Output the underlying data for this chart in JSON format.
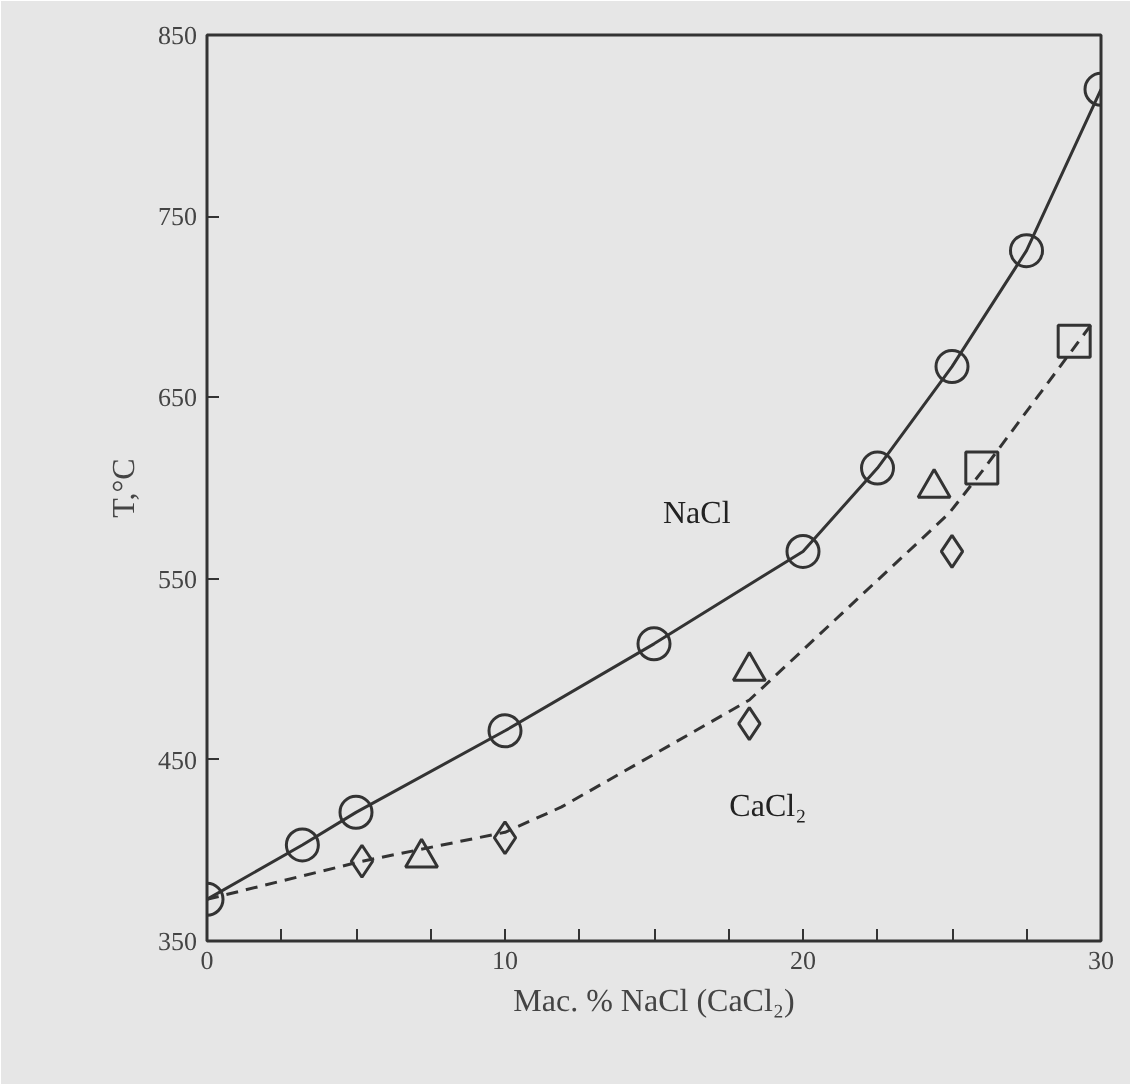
{
  "chart_data": {
    "type": "scatter",
    "xlabel": "Мас. % NaCl (CaCl₂)",
    "ylabel": "T,°C",
    "xlim": [
      0,
      30
    ],
    "ylim": [
      350,
      850
    ],
    "xticks": [
      0,
      {
        "value": 2.5,
        "label": null
      },
      {
        "value": 5,
        "label": null
      },
      {
        "value": 7.5,
        "label": null
      },
      10,
      {
        "value": 12.5,
        "label": null
      },
      {
        "value": 15,
        "label": null
      },
      {
        "value": 17.5,
        "label": null
      },
      20,
      {
        "value": 22.5,
        "label": null
      },
      {
        "value": 25,
        "label": null
      },
      {
        "value": 27.5,
        "label": null
      },
      30
    ],
    "yticks": [
      350,
      450,
      550,
      650,
      750,
      850
    ],
    "grid": false,
    "legend": false,
    "series": [
      {
        "type": "line",
        "name": "NaCl",
        "color": "#333333",
        "line_style": "solid",
        "x": [
          0,
          3.2,
          5,
          10,
          15,
          20,
          22.5,
          25,
          27.5,
          30
        ],
        "values": [
          373,
          403,
          421,
          466,
          514,
          565,
          611,
          667,
          731,
          820
        ]
      },
      {
        "type": "line",
        "name": "CaCl₂",
        "color": "#333333",
        "line_style": "dashed",
        "x": [
          0,
          5.2,
          10,
          11.9,
          18.2,
          24.9,
          26,
          29.8
        ],
        "values": [
          373,
          394,
          410,
          424,
          483,
          586,
          609,
          693
        ]
      },
      {
        "color": "#333333",
        "marker": "circle",
        "x": [
          0,
          3.2,
          5,
          10,
          15,
          20,
          22.5,
          25,
          27.5,
          30
        ],
        "values": [
          373,
          403,
          421,
          466,
          514,
          565,
          611,
          667,
          731,
          820
        ]
      },
      {
        "color": "#333333",
        "marker": "triangle",
        "x": [
          7.2,
          18.2,
          24.4
        ],
        "values": [
          396,
          499,
          600
        ]
      },
      {
        "color": "#333333",
        "marker": "diamond",
        "x": [
          5.2,
          10,
          18.2,
          25
        ],
        "values": [
          394,
          407,
          470,
          565
        ]
      },
      {
        "color": "#333333",
        "marker": "square",
        "x": [
          26,
          29.1
        ],
        "values": [
          611,
          681
        ]
      }
    ]
  }
}
